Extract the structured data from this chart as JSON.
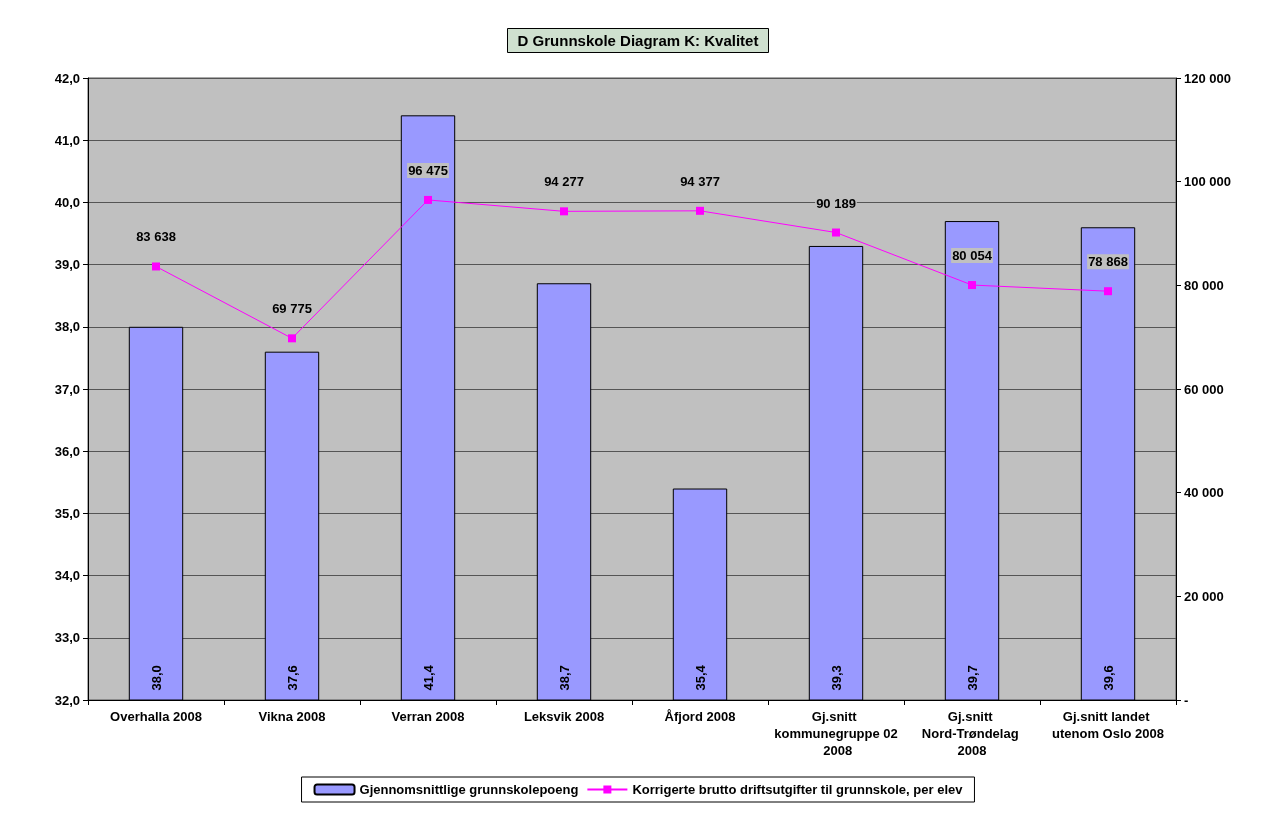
{
  "chart_data": {
    "type": "bar",
    "title": "D Grunnskole Diagram K: Kvalitet",
    "categories": [
      "Overhalla 2008",
      "Vikna 2008",
      "Verran 2008",
      "Leksvik 2008",
      "Åfjord 2008",
      "Gj.snitt kommunegruppe 02 2008",
      "Gj.snitt Nord-Trøndelag 2008",
      "Gj.snitt landet utenom Oslo 2008"
    ],
    "series": [
      {
        "name": "Gjennomsnittlige grunnskolepoeng",
        "color": "#9999ff",
        "values": [
          38.0,
          37.6,
          41.4,
          38.7,
          35.4,
          39.3,
          39.7,
          39.6
        ],
        "value_labels": [
          "38,0",
          "37,6",
          "41,4",
          "38,7",
          "35,4",
          "39,3",
          "39,7",
          "39,6"
        ]
      },
      {
        "name": "Korrigerte brutto driftsutgifter til grunnskole, per elev",
        "type": "line",
        "axis": "y2",
        "color": "#ff00ff",
        "values": [
          83638,
          69775,
          96475,
          94277,
          94377,
          90189,
          80054,
          78868
        ],
        "value_labels": [
          "83 638",
          "69 775",
          "96 475",
          "94 277",
          "94 377",
          "90 189",
          "80 054",
          "78 868"
        ]
      }
    ],
    "ylim": [
      32,
      42
    ],
    "yticks": [
      {
        "value": 32,
        "label": "32,0"
      },
      {
        "value": 33,
        "label": "33,0"
      },
      {
        "value": 34,
        "label": "34,0"
      },
      {
        "value": 35,
        "label": "35,0"
      },
      {
        "value": 36,
        "label": "36,0"
      },
      {
        "value": 37,
        "label": "37,0"
      },
      {
        "value": 38,
        "label": "38,0"
      },
      {
        "value": 39,
        "label": "39,0"
      },
      {
        "value": 40,
        "label": "40,0"
      },
      {
        "value": 41,
        "label": "41,0"
      },
      {
        "value": 42,
        "label": "42,0"
      }
    ],
    "y2lim": [
      0,
      120000
    ],
    "y2ticks": [
      {
        "value": 0,
        "label": "-"
      },
      {
        "value": 20000,
        "label": "20 000"
      },
      {
        "value": 40000,
        "label": "40 000"
      },
      {
        "value": 60000,
        "label": "60 000"
      },
      {
        "value": 80000,
        "label": "80 000"
      },
      {
        "value": 100000,
        "label": "100 000"
      },
      {
        "value": 120000,
        "label": "120 000"
      }
    ],
    "grid": "y",
    "legend": "bottom",
    "marker": "square",
    "line_style": "solid"
  }
}
